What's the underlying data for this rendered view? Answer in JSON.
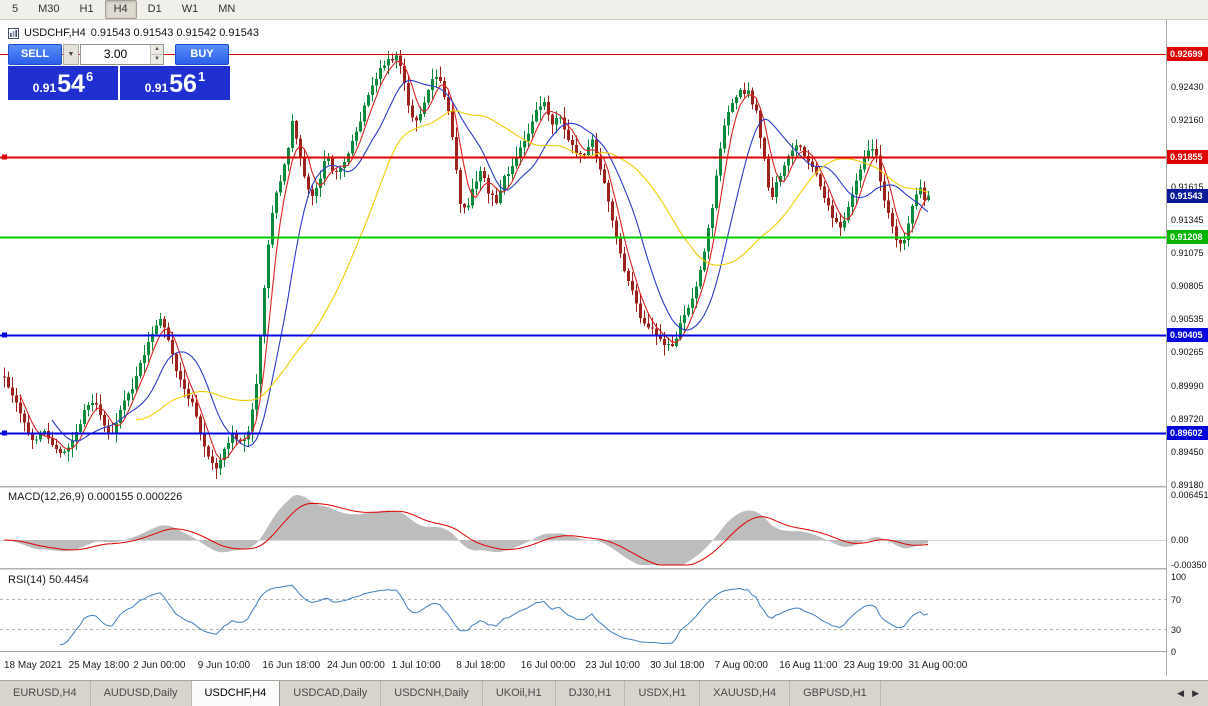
{
  "toolbar": {
    "timeframes": [
      "5",
      "M30",
      "H1",
      "H4",
      "D1",
      "W1",
      "MN"
    ],
    "active_timeframe": "H4"
  },
  "chart_header": {
    "title": "USDCHF,H4",
    "ohlc": "0.91543 0.91543 0.91542 0.91543"
  },
  "trade_panel": {
    "sell_label": "SELL",
    "buy_label": "BUY",
    "volume": "3.00",
    "dropdown_glyph": "▼",
    "spinner_up": "▲",
    "spinner_down": "▼",
    "sell_price_main": "0.91",
    "sell_price_big": "54",
    "sell_price_sup": "6",
    "buy_price_main": "0.91",
    "buy_price_big": "56",
    "buy_price_sup": "1"
  },
  "tabs": {
    "items": [
      "EURUSD,H4",
      "AUDUSD,Daily",
      "USDCHF,H4",
      "USDCAD,Daily",
      "USDCNH,Daily",
      "UKOil,H1",
      "DJ30,H1",
      "USDX,H1",
      "XAUUSD,H4",
      "GBPUSD,H1"
    ],
    "active": "USDCHF,H4",
    "scroll_left": "◀",
    "scroll_right": "▶"
  },
  "chart_data": {
    "type": "candlestick",
    "symbol": "USDCHF",
    "timeframe": "H4",
    "ohlc_display": {
      "open": "0.91543",
      "high": "0.91543",
      "low": "0.91542",
      "close": "0.91543"
    },
    "bid": "0.91546",
    "ask": "0.91561",
    "y_map": {
      "top_price": 0.92699,
      "top_y": 54,
      "bottom_price": 0.8918,
      "bottom_y": 485
    },
    "x_start": 4,
    "candle_spacing": 4,
    "candles_count": 232,
    "last_close": 0.91543,
    "colors": {
      "up": "#0c8a3c",
      "down": "#9e221c"
    },
    "moving_averages": [
      {
        "period": 5,
        "color": "#dd2222"
      },
      {
        "period": 13,
        "color": "#2a3cc8"
      },
      {
        "period": 34,
        "color": "#f0ce00"
      }
    ],
    "levels": [
      {
        "price": 0.92699,
        "color": "#dd0000",
        "width": 1,
        "handle": false
      },
      {
        "price": 0.91855,
        "color": "#dd0000",
        "width": 2,
        "handle": true
      },
      {
        "price": 0.91208,
        "color": "#00cc00",
        "width": 2,
        "handle": false
      },
      {
        "price": 0.90405,
        "color": "#0000e0",
        "width": 2,
        "handle": true
      },
      {
        "price": 0.89602,
        "color": "#0000e0",
        "width": 2,
        "handle": true
      }
    ],
    "y_ticks": [
      "0.92430",
      "0.92160",
      "0.91615",
      "0.91345",
      "0.91075",
      "0.90805",
      "0.90535",
      "0.90265",
      "0.89990",
      "0.89720",
      "0.89450",
      "0.89180"
    ],
    "price_badges": [
      {
        "text": "0.92699",
        "price": 0.92699,
        "bg": "#dd0000"
      },
      {
        "text": "0.91855",
        "price": 0.91855,
        "bg": "#dd0000"
      },
      {
        "text": "0.91543",
        "price": 0.91543,
        "bg": "#0a1a9a"
      },
      {
        "text": "0.91208",
        "price": 0.91208,
        "bg": "#00b400"
      },
      {
        "text": "0.90405",
        "price": 0.90405,
        "bg": "#0000dd"
      },
      {
        "text": "0.89602",
        "price": 0.89602,
        "bg": "#0000dd"
      }
    ],
    "x_labels": [
      "18 May 2021",
      "25 May 18:00",
      "2 Jun 00:00",
      "9 Jun 10:00",
      "16 Jun 18:00",
      "24 Jun 00:00",
      "1 Jul 10:00",
      "8 Jul 18:00",
      "16 Jul 00:00",
      "23 Jul 10:00",
      "30 Jul 18:00",
      "7 Aug 00:00",
      "16 Aug 11:00",
      "23 Aug 19:00",
      "31 Aug 00:00"
    ],
    "macd": {
      "label": "MACD(12,26,9) 0.000155 0.000226",
      "fast": 12,
      "slow": 26,
      "signal": 9,
      "value": "0.000155",
      "signal_value": "0.000226",
      "hist_color": "#bdbdbd",
      "signal_color": "#e00000",
      "ticks": [
        "0.006451",
        "0.00",
        "-0.00350"
      ]
    },
    "rsi": {
      "label": "RSI(14) 50.4454",
      "period": 14,
      "value": "50.4454",
      "color": "#3f7fc1",
      "levels": [
        70,
        30
      ],
      "ticks": [
        "100",
        "70",
        "30",
        "0"
      ]
    },
    "price_path": [
      [
        4,
        0.9005
      ],
      [
        14,
        0.8988
      ],
      [
        24,
        0.8968
      ],
      [
        34,
        0.8952
      ],
      [
        44,
        0.896
      ],
      [
        54,
        0.8948
      ],
      [
        64,
        0.8944
      ],
      [
        74,
        0.8958
      ],
      [
        84,
        0.8978
      ],
      [
        94,
        0.8988
      ],
      [
        102,
        0.8972
      ],
      [
        110,
        0.8958
      ],
      [
        118,
        0.8975
      ],
      [
        126,
        0.8992
      ],
      [
        134,
        0.9
      ],
      [
        142,
        0.9022
      ],
      [
        152,
        0.9042
      ],
      [
        160,
        0.9055
      ],
      [
        168,
        0.9038
      ],
      [
        176,
        0.9012
      ],
      [
        184,
        0.8996
      ],
      [
        192,
        0.8985
      ],
      [
        200,
        0.8962
      ],
      [
        208,
        0.894
      ],
      [
        216,
        0.893
      ],
      [
        224,
        0.8948
      ],
      [
        232,
        0.8958
      ],
      [
        240,
        0.8952
      ],
      [
        248,
        0.8962
      ],
      [
        256,
        0.9
      ],
      [
        262,
        0.906
      ],
      [
        268,
        0.9115
      ],
      [
        274,
        0.915
      ],
      [
        280,
        0.9165
      ],
      [
        286,
        0.9185
      ],
      [
        292,
        0.9215
      ],
      [
        298,
        0.9195
      ],
      [
        304,
        0.917
      ],
      [
        310,
        0.9152
      ],
      [
        318,
        0.9162
      ],
      [
        326,
        0.9188
      ],
      [
        334,
        0.917
      ],
      [
        342,
        0.9178
      ],
      [
        350,
        0.9195
      ],
      [
        358,
        0.921
      ],
      [
        366,
        0.9232
      ],
      [
        374,
        0.9248
      ],
      [
        382,
        0.926
      ],
      [
        390,
        0.9266
      ],
      [
        398,
        0.9268
      ],
      [
        404,
        0.9245
      ],
      [
        410,
        0.9222
      ],
      [
        418,
        0.9215
      ],
      [
        426,
        0.9235
      ],
      [
        434,
        0.9256
      ],
      [
        440,
        0.9248
      ],
      [
        448,
        0.9225
      ],
      [
        454,
        0.919
      ],
      [
        460,
        0.9148
      ],
      [
        466,
        0.9142
      ],
      [
        472,
        0.916
      ],
      [
        480,
        0.9176
      ],
      [
        488,
        0.9158
      ],
      [
        496,
        0.915
      ],
      [
        504,
        0.9168
      ],
      [
        512,
        0.918
      ],
      [
        520,
        0.9192
      ],
      [
        528,
        0.9205
      ],
      [
        536,
        0.9222
      ],
      [
        544,
        0.923
      ],
      [
        552,
        0.9212
      ],
      [
        560,
        0.922
      ],
      [
        568,
        0.92
      ],
      [
        576,
        0.919
      ],
      [
        584,
        0.9188
      ],
      [
        592,
        0.9198
      ],
      [
        600,
        0.9175
      ],
      [
        608,
        0.915
      ],
      [
        616,
        0.9118
      ],
      [
        624,
        0.9092
      ],
      [
        632,
        0.9075
      ],
      [
        640,
        0.9055
      ],
      [
        648,
        0.9048
      ],
      [
        656,
        0.904
      ],
      [
        664,
        0.9032
      ],
      [
        672,
        0.903
      ],
      [
        680,
        0.9048
      ],
      [
        688,
        0.9062
      ],
      [
        696,
        0.908
      ],
      [
        704,
        0.9108
      ],
      [
        712,
        0.9145
      ],
      [
        718,
        0.9185
      ],
      [
        724,
        0.9212
      ],
      [
        732,
        0.923
      ],
      [
        740,
        0.924
      ],
      [
        748,
        0.9238
      ],
      [
        756,
        0.9222
      ],
      [
        764,
        0.9185
      ],
      [
        770,
        0.915
      ],
      [
        778,
        0.9168
      ],
      [
        786,
        0.9182
      ],
      [
        794,
        0.9196
      ],
      [
        802,
        0.9192
      ],
      [
        810,
        0.9178
      ],
      [
        818,
        0.9168
      ],
      [
        826,
        0.9148
      ],
      [
        834,
        0.9135
      ],
      [
        842,
        0.9128
      ],
      [
        850,
        0.9152
      ],
      [
        858,
        0.9172
      ],
      [
        866,
        0.9188
      ],
      [
        874,
        0.9195
      ],
      [
        880,
        0.9165
      ],
      [
        888,
        0.914
      ],
      [
        896,
        0.912
      ],
      [
        902,
        0.911
      ],
      [
        908,
        0.9132
      ],
      [
        914,
        0.915
      ],
      [
        920,
        0.916
      ],
      [
        926,
        0.9148
      ],
      [
        930,
        0.91543
      ]
    ]
  }
}
